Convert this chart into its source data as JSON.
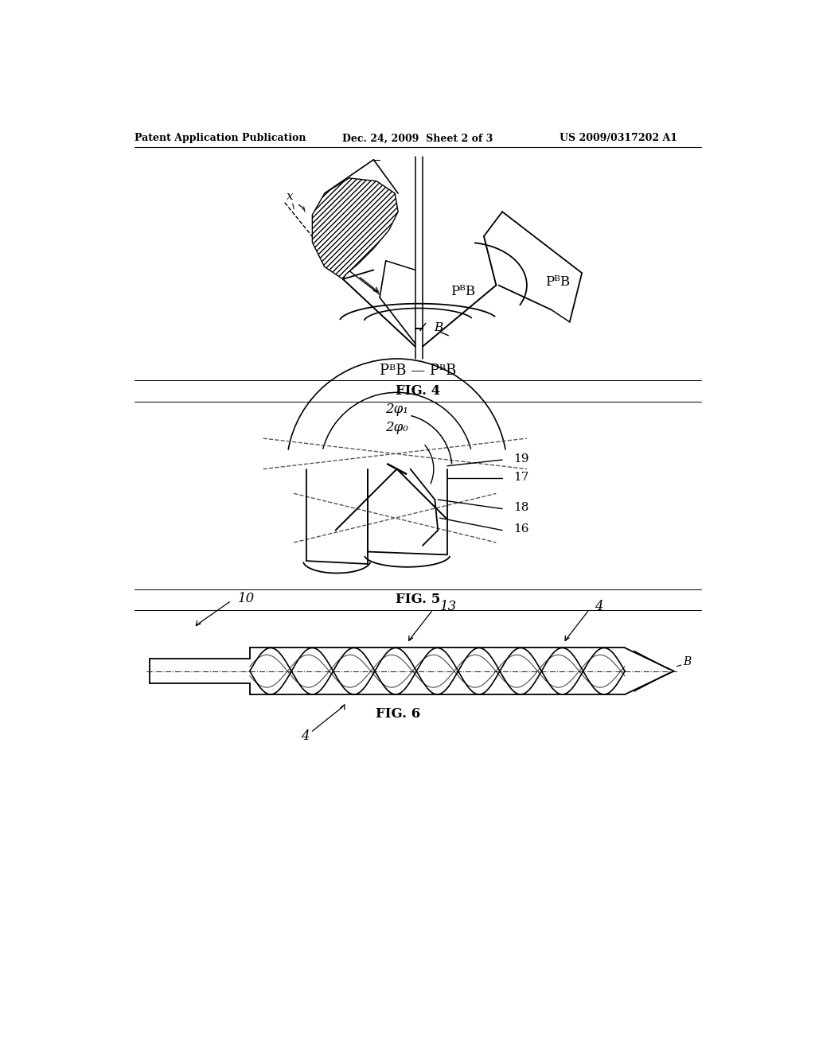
{
  "bg_color": "#ffffff",
  "text_color": "#000000",
  "line_color": "#000000",
  "header_left": "Patent Application Publication",
  "header_center": "Dec. 24, 2009  Sheet 2 of 3",
  "header_right": "US 2009/0317202 A1",
  "fig4_label": "FIG. 4",
  "fig5_label": "FIG. 5",
  "fig6_label": "FIG. 6",
  "fig4_bottom_label": "PᴮB — PᴮB"
}
